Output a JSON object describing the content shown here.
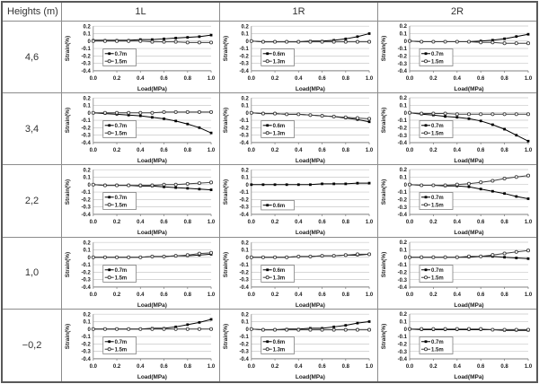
{
  "table": {
    "header": [
      "Heights (m)",
      "1L",
      "1R",
      "2R"
    ],
    "row_labels": [
      "4,6",
      "3,4",
      "2,2",
      "1,0",
      "−0,2"
    ]
  },
  "axes": {
    "ylabel": "Strain(%)",
    "xlabel": "Load(MPa)",
    "ylim": [
      -0.4,
      0.2
    ],
    "yticks": [
      "0.2",
      "0.1",
      "0",
      "-0.1",
      "-0.2",
      "-0.3",
      "-0.4"
    ],
    "xticks": [
      "0.0",
      "0.2",
      "0.4",
      "0.6",
      "0.8",
      "1.0"
    ],
    "grid": true,
    "legend_position": "inside-left"
  },
  "colors": {
    "series_primary": "#000000",
    "series_secondary": "#3f3f3f",
    "grid": "#c8c8c8",
    "axis": "#808080",
    "border": "#595959",
    "text": "#1a1a1a"
  },
  "chart_data": [
    {
      "type": "line",
      "row": "4,6",
      "column": "1L",
      "x": [
        0,
        0.1,
        0.2,
        0.3,
        0.4,
        0.5,
        0.6,
        0.7,
        0.8,
        0.9,
        1.0
      ],
      "series": [
        {
          "name": "0.7m",
          "marker": "filled-square",
          "color": "#000000",
          "values": [
            0.01,
            0.01,
            0.01,
            0.01,
            0.02,
            0.02,
            0.03,
            0.04,
            0.05,
            0.06,
            0.08
          ]
        },
        {
          "name": "1.5m",
          "marker": "open-circle",
          "color": "#3f3f3f",
          "values": [
            0.0,
            0.0,
            0.0,
            0.0,
            0.0,
            -0.01,
            -0.01,
            -0.01,
            -0.02,
            -0.02,
            -0.02
          ]
        }
      ]
    },
    {
      "type": "line",
      "row": "4,6",
      "column": "1R",
      "x": [
        0,
        0.1,
        0.2,
        0.3,
        0.4,
        0.5,
        0.6,
        0.7,
        0.8,
        0.9,
        1.0
      ],
      "series": [
        {
          "name": "0.6m",
          "marker": "filled-square",
          "color": "#000000",
          "values": [
            0.0,
            -0.01,
            -0.01,
            -0.01,
            -0.01,
            0.0,
            0.0,
            0.01,
            0.03,
            0.06,
            0.1
          ]
        },
        {
          "name": "1.3m",
          "marker": "open-circle",
          "color": "#3f3f3f",
          "values": [
            0.0,
            -0.01,
            -0.01,
            -0.01,
            -0.01,
            -0.01,
            -0.01,
            -0.01,
            -0.01,
            -0.01,
            -0.01
          ]
        }
      ]
    },
    {
      "type": "line",
      "row": "4,6",
      "column": "2R",
      "x": [
        0,
        0.1,
        0.2,
        0.3,
        0.4,
        0.5,
        0.6,
        0.7,
        0.8,
        0.9,
        1.0
      ],
      "series": [
        {
          "name": "0.7m",
          "marker": "filled-square",
          "color": "#000000",
          "values": [
            0.0,
            -0.01,
            -0.01,
            -0.01,
            -0.01,
            -0.01,
            0.0,
            0.01,
            0.03,
            0.06,
            0.09
          ]
        },
        {
          "name": "1.5m",
          "marker": "open-circle",
          "color": "#3f3f3f",
          "values": [
            0.0,
            -0.01,
            -0.01,
            -0.01,
            -0.01,
            -0.01,
            -0.02,
            -0.02,
            -0.03,
            -0.03,
            -0.03
          ]
        }
      ]
    },
    {
      "type": "line",
      "row": "3,4",
      "column": "1L",
      "x": [
        0,
        0.1,
        0.2,
        0.3,
        0.4,
        0.5,
        0.6,
        0.7,
        0.8,
        0.9,
        1.0
      ],
      "series": [
        {
          "name": "0.7m",
          "marker": "filled-square",
          "color": "#000000",
          "values": [
            0.0,
            -0.01,
            -0.02,
            -0.03,
            -0.04,
            -0.06,
            -0.08,
            -0.11,
            -0.15,
            -0.2,
            -0.27
          ]
        },
        {
          "name": "1.5m",
          "marker": "open-circle",
          "color": "#3f3f3f",
          "values": [
            0.0,
            0.0,
            0.0,
            0.0,
            0.0,
            0.0,
            0.01,
            0.01,
            0.01,
            0.01,
            0.01
          ]
        }
      ]
    },
    {
      "type": "line",
      "row": "3,4",
      "column": "1R",
      "x": [
        0,
        0.1,
        0.2,
        0.3,
        0.4,
        0.5,
        0.6,
        0.7,
        0.8,
        0.9,
        1.0
      ],
      "series": [
        {
          "name": "0.6m",
          "marker": "filled-square",
          "color": "#000000",
          "values": [
            0.0,
            -0.01,
            -0.01,
            -0.02,
            -0.02,
            -0.03,
            -0.04,
            -0.05,
            -0.07,
            -0.09,
            -0.12
          ]
        },
        {
          "name": "1.3m",
          "marker": "open-circle",
          "color": "#3f3f3f",
          "values": [
            0.0,
            -0.01,
            -0.01,
            -0.02,
            -0.02,
            -0.03,
            -0.04,
            -0.05,
            -0.06,
            -0.07,
            -0.08
          ]
        }
      ]
    },
    {
      "type": "line",
      "row": "3,4",
      "column": "2R",
      "x": [
        0,
        0.1,
        0.2,
        0.3,
        0.4,
        0.5,
        0.6,
        0.7,
        0.8,
        0.9,
        1.0
      ],
      "series": [
        {
          "name": "0.7m",
          "marker": "filled-square",
          "color": "#000000",
          "values": [
            0.0,
            -0.02,
            -0.03,
            -0.05,
            -0.06,
            -0.08,
            -0.11,
            -0.16,
            -0.22,
            -0.3,
            -0.38
          ]
        },
        {
          "name": "1.5m",
          "marker": "open-circle",
          "color": "#3f3f3f",
          "values": [
            0.0,
            -0.01,
            -0.01,
            -0.01,
            -0.02,
            -0.02,
            -0.02,
            -0.02,
            -0.02,
            -0.02,
            -0.02
          ]
        }
      ]
    },
    {
      "type": "line",
      "row": "2,2",
      "column": "1L",
      "x": [
        0,
        0.1,
        0.2,
        0.3,
        0.4,
        0.5,
        0.6,
        0.7,
        0.8,
        0.9,
        1.0
      ],
      "series": [
        {
          "name": "0.7m",
          "marker": "filled-square",
          "color": "#000000",
          "values": [
            0.0,
            -0.01,
            -0.01,
            -0.01,
            -0.02,
            -0.02,
            -0.03,
            -0.04,
            -0.05,
            -0.06,
            -0.07
          ]
        },
        {
          "name": "1.5m",
          "marker": "open-circle",
          "color": "#3f3f3f",
          "values": [
            0.0,
            -0.01,
            -0.01,
            -0.01,
            -0.01,
            -0.01,
            0.0,
            0.0,
            0.01,
            0.02,
            0.03
          ]
        }
      ]
    },
    {
      "type": "line",
      "row": "2,2",
      "column": "1R",
      "x": [
        0,
        0.1,
        0.2,
        0.3,
        0.4,
        0.5,
        0.6,
        0.7,
        0.8,
        0.9,
        1.0
      ],
      "series": [
        {
          "name": "0.6m",
          "marker": "filled-square",
          "color": "#000000",
          "values": [
            0.0,
            0.0,
            0.0,
            0.0,
            0.0,
            0.0,
            0.01,
            0.01,
            0.01,
            0.02,
            0.02
          ]
        }
      ]
    },
    {
      "type": "line",
      "row": "2,2",
      "column": "2R",
      "x": [
        0,
        0.1,
        0.2,
        0.3,
        0.4,
        0.5,
        0.6,
        0.7,
        0.8,
        0.9,
        1.0
      ],
      "series": [
        {
          "name": "0.7m",
          "marker": "filled-square",
          "color": "#000000",
          "values": [
            0.0,
            -0.01,
            -0.01,
            -0.02,
            -0.02,
            -0.03,
            -0.06,
            -0.09,
            -0.12,
            -0.16,
            -0.19
          ]
        },
        {
          "name": "1.5m",
          "marker": "open-circle",
          "color": "#3f3f3f",
          "values": [
            0.0,
            -0.01,
            -0.01,
            -0.01,
            0.0,
            0.01,
            0.03,
            0.05,
            0.08,
            0.1,
            0.12
          ]
        }
      ]
    },
    {
      "type": "line",
      "row": "1,0",
      "column": "1L",
      "x": [
        0,
        0.1,
        0.2,
        0.3,
        0.4,
        0.5,
        0.6,
        0.7,
        0.8,
        0.9,
        1.0
      ],
      "series": [
        {
          "name": "0.7m",
          "marker": "filled-square",
          "color": "#000000",
          "values": [
            0.0,
            0.0,
            0.0,
            0.0,
            0.0,
            0.01,
            0.01,
            0.02,
            0.02,
            0.03,
            0.04
          ]
        },
        {
          "name": "1.5m",
          "marker": "open-circle",
          "color": "#3f3f3f",
          "values": [
            0.0,
            0.0,
            0.0,
            0.0,
            0.0,
            0.01,
            0.01,
            0.02,
            0.03,
            0.05,
            0.06
          ]
        }
      ]
    },
    {
      "type": "line",
      "row": "1,0",
      "column": "1R",
      "x": [
        0,
        0.1,
        0.2,
        0.3,
        0.4,
        0.5,
        0.6,
        0.7,
        0.8,
        0.9,
        1.0
      ],
      "series": [
        {
          "name": "0.6m",
          "marker": "filled-square",
          "color": "#000000",
          "values": [
            0.0,
            0.0,
            0.0,
            0.0,
            0.01,
            0.01,
            0.02,
            0.02,
            0.03,
            0.03,
            0.04
          ]
        },
        {
          "name": "1.3m",
          "marker": "open-circle",
          "color": "#3f3f3f",
          "values": [
            0.0,
            0.0,
            0.0,
            0.0,
            0.01,
            0.01,
            0.02,
            0.02,
            0.03,
            0.04,
            0.04
          ]
        }
      ]
    },
    {
      "type": "line",
      "row": "1,0",
      "column": "2R",
      "x": [
        0,
        0.1,
        0.2,
        0.3,
        0.4,
        0.5,
        0.6,
        0.7,
        0.8,
        0.9,
        1.0
      ],
      "series": [
        {
          "name": "0.7m",
          "marker": "filled-square",
          "color": "#000000",
          "values": [
            0.0,
            0.0,
            0.0,
            0.0,
            0.0,
            0.0,
            0.01,
            0.01,
            0.0,
            -0.01,
            -0.02
          ]
        },
        {
          "name": "1.5m",
          "marker": "open-circle",
          "color": "#3f3f3f",
          "values": [
            0.0,
            0.0,
            0.0,
            0.0,
            0.0,
            0.01,
            0.01,
            0.03,
            0.05,
            0.07,
            0.09
          ]
        }
      ]
    },
    {
      "type": "line",
      "row": "−0,2",
      "column": "1L",
      "x": [
        0,
        0.1,
        0.2,
        0.3,
        0.4,
        0.5,
        0.6,
        0.7,
        0.8,
        0.9,
        1.0
      ],
      "series": [
        {
          "name": "0.7m",
          "marker": "filled-square",
          "color": "#000000",
          "values": [
            0.0,
            0.0,
            0.0,
            0.0,
            0.0,
            0.01,
            0.01,
            0.03,
            0.06,
            0.09,
            0.13
          ]
        },
        {
          "name": "1.5m",
          "marker": "open-circle",
          "color": "#3f3f3f",
          "values": [
            0.0,
            0.0,
            0.0,
            0.0,
            0.0,
            0.0,
            0.0,
            0.0,
            0.0,
            0.0,
            0.0
          ]
        }
      ]
    },
    {
      "type": "line",
      "row": "−0,2",
      "column": "1R",
      "x": [
        0,
        0.1,
        0.2,
        0.3,
        0.4,
        0.5,
        0.6,
        0.7,
        0.8,
        0.9,
        1.0
      ],
      "series": [
        {
          "name": "0.6m",
          "marker": "filled-square",
          "color": "#000000",
          "values": [
            0.0,
            -0.01,
            -0.01,
            0.0,
            0.0,
            0.01,
            0.01,
            0.03,
            0.05,
            0.08,
            0.1
          ]
        },
        {
          "name": "1.3m",
          "marker": "open-circle",
          "color": "#3f3f3f",
          "values": [
            0.0,
            -0.01,
            -0.01,
            -0.01,
            -0.01,
            -0.01,
            -0.01,
            -0.01,
            -0.01,
            -0.01,
            -0.01
          ]
        }
      ]
    },
    {
      "type": "line",
      "row": "−0,2",
      "column": "2R",
      "x": [
        0,
        0.1,
        0.2,
        0.3,
        0.4,
        0.5,
        0.6,
        0.7,
        0.8,
        0.9,
        1.0
      ],
      "series": [
        {
          "name": "0.7m",
          "marker": "filled-square",
          "color": "#000000",
          "values": [
            0.0,
            -0.01,
            -0.01,
            -0.01,
            -0.01,
            -0.01,
            -0.01,
            -0.01,
            -0.02,
            -0.02,
            -0.02
          ]
        },
        {
          "name": "1.5m",
          "marker": "open-circle",
          "color": "#3f3f3f",
          "values": [
            0.0,
            0.0,
            0.0,
            0.0,
            0.0,
            0.0,
            0.0,
            -0.01,
            -0.01,
            -0.01,
            -0.01
          ]
        }
      ]
    }
  ]
}
